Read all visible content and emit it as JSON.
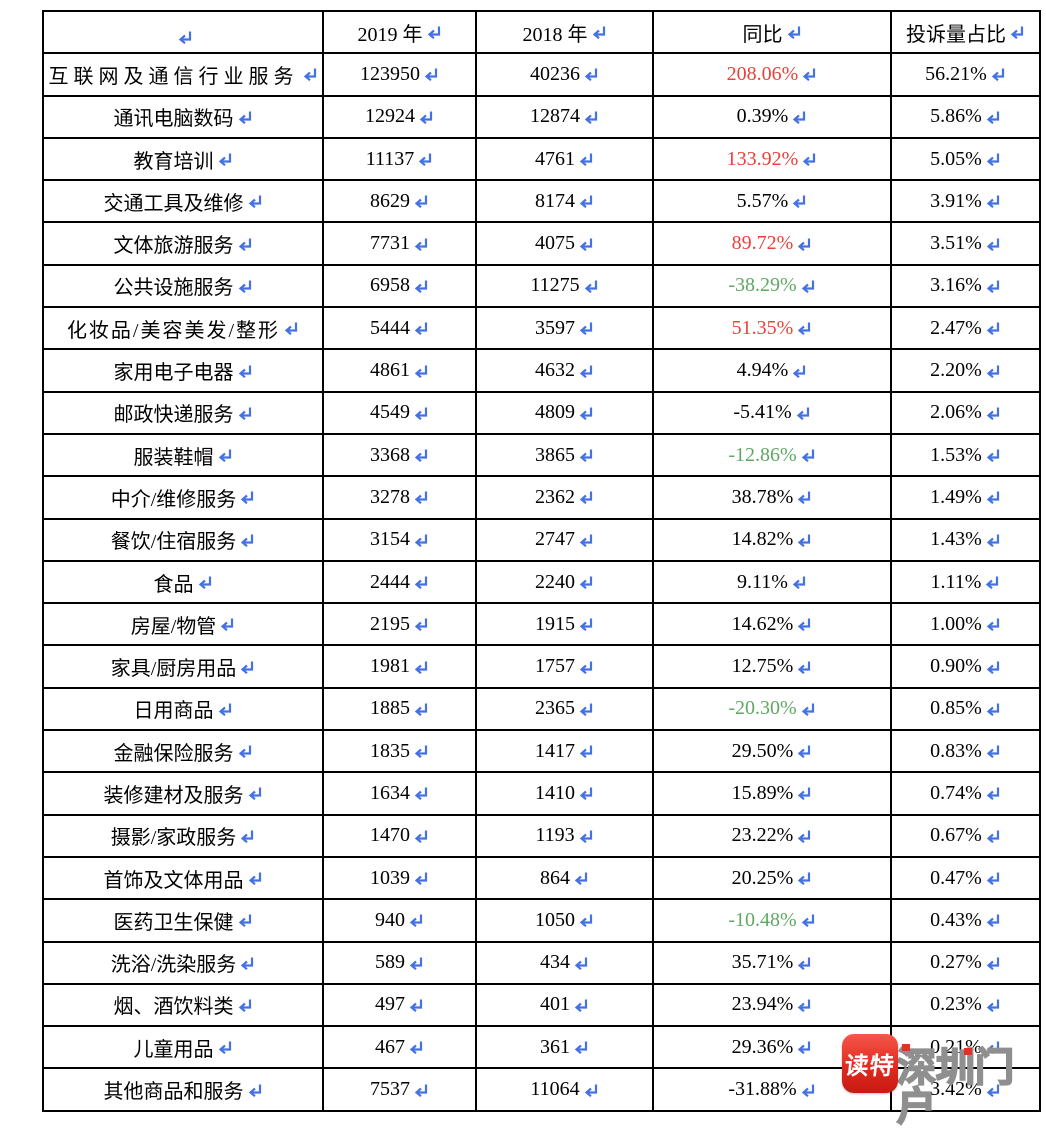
{
  "table": {
    "columns": [
      {
        "label": ""
      },
      {
        "label": "2019 年"
      },
      {
        "label": "2018 年"
      },
      {
        "label": "同比"
      },
      {
        "label": "投诉量占比"
      }
    ],
    "rows": [
      {
        "category": "互联网及通信行业服务",
        "y2019": "123950",
        "y2018": "40236",
        "yoy": "208.06%",
        "yoy_color": "red",
        "share": "56.21%"
      },
      {
        "category": "通讯电脑数码",
        "y2019": "12924",
        "y2018": "12874",
        "yoy": "0.39%",
        "yoy_color": "black",
        "share": "5.86%"
      },
      {
        "category": "教育培训",
        "y2019": "11137",
        "y2018": "4761",
        "yoy": "133.92%",
        "yoy_color": "red",
        "share": "5.05%"
      },
      {
        "category": "交通工具及维修",
        "y2019": "8629",
        "y2018": "8174",
        "yoy": "5.57%",
        "yoy_color": "black",
        "share": "3.91%"
      },
      {
        "category": "文体旅游服务",
        "y2019": "7731",
        "y2018": "4075",
        "yoy": "89.72%",
        "yoy_color": "red",
        "share": "3.51%"
      },
      {
        "category": "公共设施服务",
        "y2019": "6958",
        "y2018": "11275",
        "yoy": "-38.29%",
        "yoy_color": "green",
        "share": "3.16%"
      },
      {
        "category": "化妆品/美容美发/整形",
        "y2019": "5444",
        "y2018": "3597",
        "yoy": "51.35%",
        "yoy_color": "red",
        "share": "2.47%"
      },
      {
        "category": "家用电子电器",
        "y2019": "4861",
        "y2018": "4632",
        "yoy": "4.94%",
        "yoy_color": "black",
        "share": "2.20%"
      },
      {
        "category": "邮政快递服务",
        "y2019": "4549",
        "y2018": "4809",
        "yoy": "-5.41%",
        "yoy_color": "black",
        "share": "2.06%"
      },
      {
        "category": "服装鞋帽",
        "y2019": "3368",
        "y2018": "3865",
        "yoy": "-12.86%",
        "yoy_color": "green",
        "share": "1.53%"
      },
      {
        "category": "中介/维修服务",
        "y2019": "3278",
        "y2018": "2362",
        "yoy": "38.78%",
        "yoy_color": "black",
        "share": "1.49%"
      },
      {
        "category": "餐饮/住宿服务",
        "y2019": "3154",
        "y2018": "2747",
        "yoy": "14.82%",
        "yoy_color": "black",
        "share": "1.43%"
      },
      {
        "category": "食品",
        "y2019": "2444",
        "y2018": "2240",
        "yoy": "9.11%",
        "yoy_color": "black",
        "share": "1.11%"
      },
      {
        "category": "房屋/物管",
        "y2019": "2195",
        "y2018": "1915",
        "yoy": "14.62%",
        "yoy_color": "black",
        "share": "1.00%"
      },
      {
        "category": "家具/厨房用品",
        "y2019": "1981",
        "y2018": "1757",
        "yoy": "12.75%",
        "yoy_color": "black",
        "share": "0.90%"
      },
      {
        "category": "日用商品",
        "y2019": "1885",
        "y2018": "2365",
        "yoy": "-20.30%",
        "yoy_color": "green",
        "share": "0.85%"
      },
      {
        "category": "金融保险服务",
        "y2019": "1835",
        "y2018": "1417",
        "yoy": "29.50%",
        "yoy_color": "black",
        "share": "0.83%"
      },
      {
        "category": "装修建材及服务",
        "y2019": "1634",
        "y2018": "1410",
        "yoy": "15.89%",
        "yoy_color": "black",
        "share": "0.74%"
      },
      {
        "category": "摄影/家政服务",
        "y2019": "1470",
        "y2018": "1193",
        "yoy": "23.22%",
        "yoy_color": "black",
        "share": "0.67%"
      },
      {
        "category": "首饰及文体用品",
        "y2019": "1039",
        "y2018": "864",
        "yoy": "20.25%",
        "yoy_color": "black",
        "share": "0.47%"
      },
      {
        "category": "医药卫生保健",
        "y2019": "940",
        "y2018": "1050",
        "yoy": "-10.48%",
        "yoy_color": "green",
        "share": "0.43%"
      },
      {
        "category": "洗浴/洗染服务",
        "y2019": "589",
        "y2018": "434",
        "yoy": "35.71%",
        "yoy_color": "black",
        "share": "0.27%"
      },
      {
        "category": "烟、酒饮料类",
        "y2019": "497",
        "y2018": "401",
        "yoy": "23.94%",
        "yoy_color": "black",
        "share": "0.23%"
      },
      {
        "category": "儿童用品",
        "y2019": "467",
        "y2018": "361",
        "yoy": "29.36%",
        "yoy_color": "black",
        "share": "0.21%"
      },
      {
        "category": "其他商品和服务",
        "y2019": "7537",
        "y2018": "11064",
        "yoy": "-31.88%",
        "yoy_color": "black",
        "share": "3.42%"
      }
    ]
  },
  "watermark": {
    "icon_text": "读特",
    "site_text": "深圳门户"
  },
  "colors": {
    "paragraph_mark_blue": "#4472e4",
    "increase_red": "#e8423a",
    "decrease_green": "#5fa763",
    "border_black": "#000000",
    "watermark_red": "#e03226"
  }
}
